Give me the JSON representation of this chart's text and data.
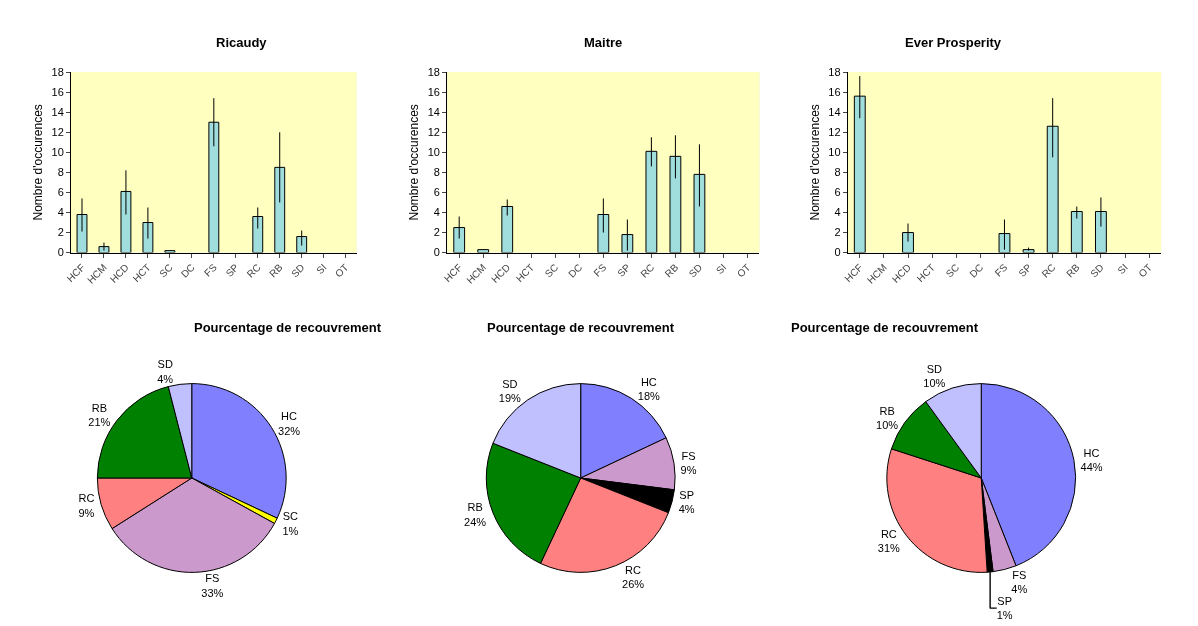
{
  "chart_data": [
    {
      "type": "bar",
      "title": "Ricaudy",
      "ylabel": "Nombre d'occurences",
      "categories": [
        "HCF",
        "HCM",
        "HCD",
        "HCT",
        "SC",
        "DC",
        "FS",
        "SP",
        "RC",
        "RB",
        "SD",
        "SI",
        "OT"
      ],
      "color": "#a0dede",
      "values": [
        3.8,
        0.6,
        6.1,
        3.0,
        0.2,
        null,
        13.0,
        null,
        3.6,
        8.5,
        1.6,
        null,
        null
      ],
      "errors": [
        [
          2.1,
          5.4
        ],
        [
          0.2,
          1.0
        ],
        [
          3.8,
          8.2
        ],
        [
          1.4,
          4.5
        ],
        null,
        null,
        [
          10.6,
          15.4
        ],
        null,
        [
          2.4,
          4.5
        ],
        [
          5.0,
          12.0
        ],
        [
          0.7,
          2.2
        ],
        null,
        null
      ],
      "ylim": [
        0,
        18
      ],
      "yticks": [
        0,
        2,
        4,
        6,
        8,
        10,
        12,
        14,
        16,
        18
      ],
      "grid": false
    },
    {
      "type": "bar",
      "title": "Maitre",
      "ylabel": "Nombre d'occurences",
      "categories": [
        "HCF",
        "HCM",
        "HCD",
        "HCT",
        "SC",
        "DC",
        "FS",
        "SP",
        "RC",
        "RB",
        "SD",
        "SI",
        "OT"
      ],
      "color": "#a0dede",
      "values": [
        2.5,
        0.3,
        4.6,
        null,
        null,
        null,
        3.8,
        1.8,
        10.1,
        9.6,
        7.8,
        null,
        null
      ],
      "errors": [
        [
          1.4,
          3.6
        ],
        null,
        [
          3.7,
          5.3
        ],
        null,
        null,
        null,
        [
          2.0,
          5.4
        ],
        [
          0.2,
          3.3
        ],
        [
          8.6,
          11.5
        ],
        [
          7.4,
          11.7
        ],
        [
          4.6,
          10.8
        ],
        null,
        null
      ],
      "ylim": [
        0,
        18
      ],
      "yticks": [
        0,
        2,
        4,
        6,
        8,
        10,
        12,
        14,
        16,
        18
      ],
      "grid": false
    },
    {
      "type": "bar",
      "title": "Ever Prosperity",
      "ylabel": "Nombre d'occurences",
      "categories": [
        "HCF",
        "HCM",
        "HCD",
        "HCT",
        "SC",
        "DC",
        "FS",
        "SP",
        "RC",
        "RB",
        "SD",
        "SI",
        "OT"
      ],
      "color": "#a0dede",
      "values": [
        15.6,
        null,
        2.0,
        null,
        null,
        null,
        1.9,
        0.3,
        12.6,
        4.1,
        4.1,
        null,
        null
      ],
      "errors": [
        [
          13.4,
          17.6
        ],
        null,
        [
          1.1,
          2.9
        ],
        null,
        null,
        null,
        [
          0.3,
          3.3
        ],
        [
          0.2,
          0.5
        ],
        [
          9.5,
          15.4
        ],
        [
          3.4,
          4.6
        ],
        [
          2.6,
          5.5
        ],
        null,
        null
      ],
      "ylim": [
        0,
        18
      ],
      "yticks": [
        0,
        2,
        4,
        6,
        8,
        10,
        12,
        14,
        16,
        18
      ],
      "grid": false
    },
    {
      "type": "pie",
      "title": "Pourcentage de recouvrement",
      "categories": [
        "HC",
        "SC",
        "FS",
        "RC",
        "RB",
        "SD"
      ],
      "values": [
        32,
        1,
        33,
        9,
        21,
        4
      ],
      "value_labels": [
        "32%",
        "1%",
        "33%",
        "9%",
        "21%",
        "4%"
      ],
      "colors": [
        "#8080ff",
        "#ffff00",
        "#cc99cc",
        "#ff8080",
        "#008000",
        "#c0c0ff"
      ]
    },
    {
      "type": "pie",
      "title": "Pourcentage de recouvrement",
      "categories": [
        "HC",
        "FS",
        "SP",
        "RC",
        "RB",
        "SD"
      ],
      "values": [
        18,
        9,
        4,
        26,
        24,
        19
      ],
      "value_labels": [
        "18%",
        "9%",
        "4%",
        "26%",
        "24%",
        "19%"
      ],
      "colors": [
        "#8080ff",
        "#cc99cc",
        "#000000",
        "#ff8080",
        "#008000",
        "#c0c0ff"
      ]
    },
    {
      "type": "pie",
      "title": "Pourcentage de recouvrement",
      "categories": [
        "HC",
        "FS",
        "SP",
        "RC",
        "RB",
        "SD"
      ],
      "values": [
        44,
        4,
        1,
        31,
        10,
        10
      ],
      "value_labels": [
        "44%",
        "4%",
        "1%",
        "31%",
        "10%",
        "10%"
      ],
      "colors": [
        "#8080ff",
        "#cc99cc",
        "#000000",
        "#ff8080",
        "#008000",
        "#c0c0ff"
      ]
    }
  ]
}
